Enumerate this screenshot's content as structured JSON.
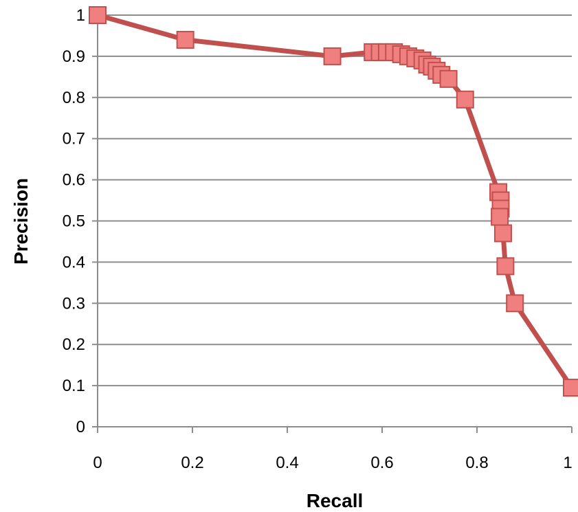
{
  "chart_data": {
    "type": "line",
    "title": "",
    "xlabel": "Recall",
    "ylabel": "Precision",
    "xlim": [
      0,
      1
    ],
    "ylim": [
      0,
      1
    ],
    "x_ticks": [
      "0",
      "0.2",
      "0.4",
      "0.6",
      "0.8",
      "1"
    ],
    "y_ticks": [
      "0",
      "0.1",
      "0.2",
      "0.3",
      "0.4",
      "0.5",
      "0.6",
      "0.7",
      "0.8",
      "0.9",
      "1"
    ],
    "grid": "horizontal",
    "legend": "none",
    "series_color": "#c0504d",
    "marker_color": "#f08080",
    "marker": "square",
    "series": [
      {
        "points": [
          {
            "x": 0.0,
            "y": 1.0
          },
          {
            "x": 0.185,
            "y": 0.94
          },
          {
            "x": 0.495,
            "y": 0.9
          },
          {
            "x": 0.58,
            "y": 0.91
          },
          {
            "x": 0.595,
            "y": 0.91
          },
          {
            "x": 0.61,
            "y": 0.91
          },
          {
            "x": 0.625,
            "y": 0.91
          },
          {
            "x": 0.64,
            "y": 0.905
          },
          {
            "x": 0.655,
            "y": 0.9
          },
          {
            "x": 0.67,
            "y": 0.895
          },
          {
            "x": 0.685,
            "y": 0.89
          },
          {
            "x": 0.695,
            "y": 0.88
          },
          {
            "x": 0.705,
            "y": 0.875
          },
          {
            "x": 0.715,
            "y": 0.865
          },
          {
            "x": 0.725,
            "y": 0.855
          },
          {
            "x": 0.74,
            "y": 0.845
          },
          {
            "x": 0.775,
            "y": 0.795
          },
          {
            "x": 0.845,
            "y": 0.57
          },
          {
            "x": 0.85,
            "y": 0.55
          },
          {
            "x": 0.85,
            "y": 0.53
          },
          {
            "x": 0.848,
            "y": 0.51
          },
          {
            "x": 0.855,
            "y": 0.47
          },
          {
            "x": 0.86,
            "y": 0.39
          },
          {
            "x": 0.88,
            "y": 0.3
          },
          {
            "x": 1.0,
            "y": 0.095
          }
        ]
      }
    ]
  }
}
